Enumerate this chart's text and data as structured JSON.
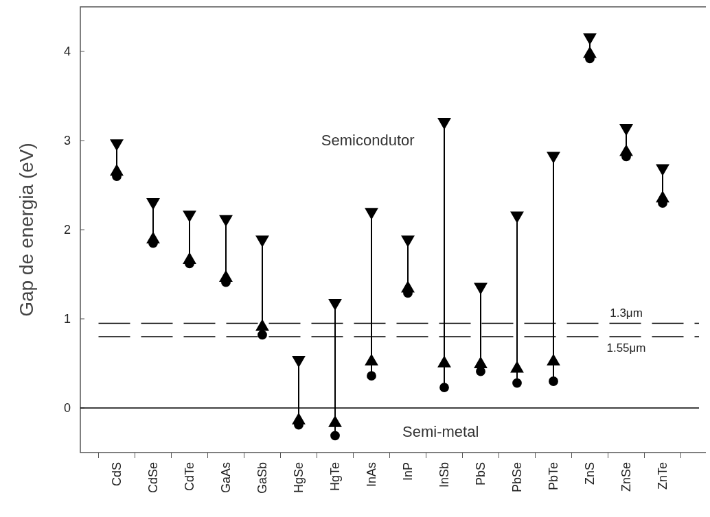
{
  "chart_data": {
    "type": "scatter",
    "ylabel": "Gap de energia (eV)",
    "categories": [
      "CdS",
      "CdSe",
      "CdTe",
      "GaAs",
      "GaSb",
      "HgSe",
      "HgTe",
      "InAs",
      "InP",
      "InSb",
      "PbS",
      "PbSe",
      "PbTe",
      "ZnS",
      "ZnSe",
      "ZnTe"
    ],
    "series": [
      {
        "type": "line",
        "color": "#000000",
        "marker": "none",
        "x": [
          "CdS",
          "CdS"
        ],
        "values": [
          2.6,
          2.97
        ]
      },
      {
        "type": "line",
        "color": "#000000",
        "marker": "none",
        "x": [
          "CdSe",
          "CdSe"
        ],
        "values": [
          1.85,
          2.31
        ]
      },
      {
        "type": "line",
        "color": "#000000",
        "marker": "none",
        "x": [
          "CdTe",
          "CdTe"
        ],
        "values": [
          1.62,
          2.17
        ]
      },
      {
        "type": "line",
        "color": "#000000",
        "marker": "none",
        "x": [
          "GaAs",
          "GaAs"
        ],
        "values": [
          1.41,
          2.12
        ]
      },
      {
        "type": "line",
        "color": "#000000",
        "marker": "none",
        "x": [
          "GaSb",
          "GaSb"
        ],
        "values": [
          0.82,
          1.89
        ]
      },
      {
        "type": "line",
        "color": "#000000",
        "marker": "none",
        "x": [
          "HgSe",
          "HgSe"
        ],
        "values": [
          -0.19,
          0.54
        ]
      },
      {
        "type": "line",
        "color": "#000000",
        "marker": "none",
        "x": [
          "HgTe",
          "HgTe"
        ],
        "values": [
          -0.31,
          1.18
        ]
      },
      {
        "type": "line",
        "color": "#000000",
        "marker": "none",
        "x": [
          "InAs",
          "InAs"
        ],
        "values": [
          0.36,
          2.2
        ]
      },
      {
        "type": "line",
        "color": "#000000",
        "marker": "none",
        "x": [
          "InP",
          "InP"
        ],
        "values": [
          1.29,
          1.89
        ]
      },
      {
        "type": "line",
        "color": "#000000",
        "marker": "none",
        "x": [
          "InSb",
          "InSb"
        ],
        "values": [
          0.23,
          3.21
        ]
      },
      {
        "type": "line",
        "color": "#000000",
        "marker": "none",
        "x": [
          "PbS",
          "PbS"
        ],
        "values": [
          0.41,
          1.36
        ]
      },
      {
        "type": "line",
        "color": "#000000",
        "marker": "none",
        "x": [
          "PbSe",
          "PbSe"
        ],
        "values": [
          0.28,
          2.16
        ]
      },
      {
        "type": "line",
        "color": "#000000",
        "marker": "none",
        "x": [
          "PbTe",
          "PbTe"
        ],
        "values": [
          0.3,
          2.83
        ]
      },
      {
        "type": "line",
        "color": "#000000",
        "marker": "none",
        "x": [
          "ZnS",
          "ZnS"
        ],
        "values": [
          3.92,
          4.16
        ]
      },
      {
        "type": "line",
        "color": "#000000",
        "marker": "none",
        "x": [
          "ZnSe",
          "ZnSe"
        ],
        "values": [
          2.82,
          3.14
        ]
      },
      {
        "type": "line",
        "color": "#000000",
        "marker": "none",
        "x": [
          "ZnTe",
          "ZnTe"
        ],
        "values": [
          2.3,
          2.69
        ]
      },
      {
        "color": "#000000",
        "marker": "triangle-down",
        "values": [
          2.97,
          2.31,
          2.17,
          2.12,
          1.89,
          0.54,
          1.18,
          2.2,
          1.89,
          3.21,
          1.36,
          2.16,
          2.83,
          4.16,
          3.14,
          2.69
        ]
      },
      {
        "color": "#000000",
        "marker": "triangle",
        "values": [
          2.65,
          1.89,
          1.66,
          1.46,
          0.91,
          -0.14,
          -0.17,
          0.52,
          1.34,
          0.5,
          0.49,
          0.44,
          0.52,
          3.97,
          2.87,
          2.35
        ]
      },
      {
        "color": "#000000",
        "marker": "circle",
        "values": [
          2.6,
          1.85,
          1.62,
          1.41,
          0.82,
          -0.19,
          -0.31,
          0.36,
          1.29,
          0.23,
          0.41,
          0.28,
          0.3,
          3.92,
          2.82,
          2.3
        ]
      }
    ],
    "ylim": [
      -0.5,
      4.5
    ],
    "yticks": [
      0,
      1,
      2,
      3,
      4
    ],
    "ref_lines": [
      {
        "axis": "y",
        "value": 0,
        "color": "#000000",
        "line_style": "solid"
      },
      {
        "axis": "y",
        "value": 0.95,
        "label": "1.3μm",
        "color": "#000000",
        "line_style": "dashed"
      },
      {
        "axis": "y",
        "value": 0.8,
        "label": "1.55μm",
        "color": "#000000",
        "line_style": "dashed"
      }
    ],
    "annotations": [
      "Semicondutor",
      "Semi-metal"
    ],
    "grid": false
  }
}
